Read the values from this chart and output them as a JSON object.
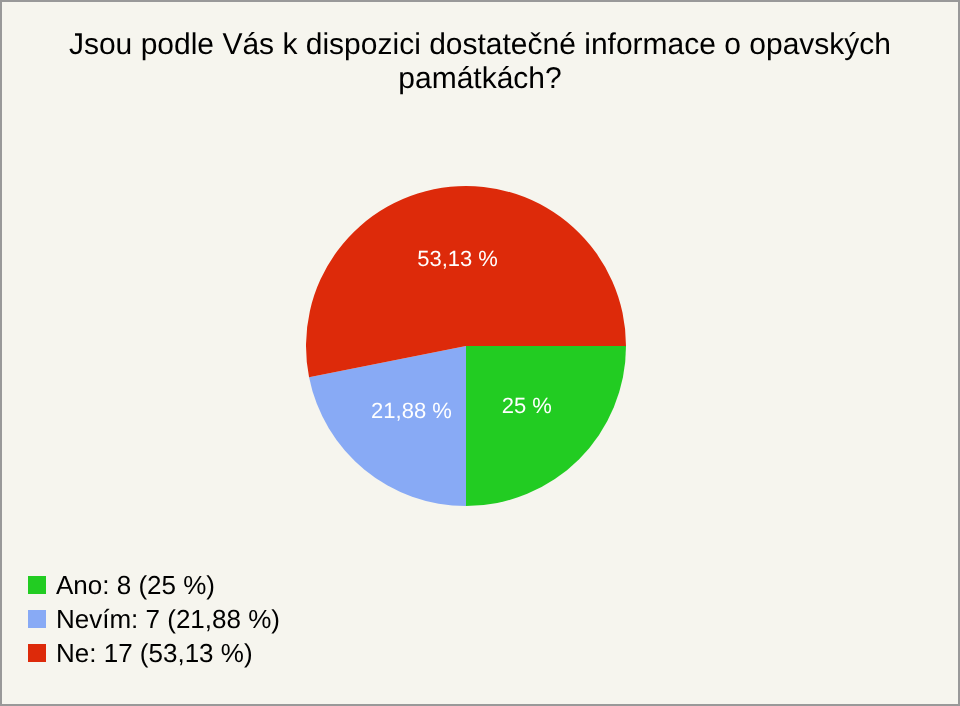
{
  "chart_data": {
    "type": "pie",
    "title": "Jsou podle Vás k dispozici dostatečné informace o opavských památkách?",
    "categories": [
      "Ano: 8 (25 %)",
      "Nevím: 7 (21,88 %)",
      "Ne: 17 (53,13 %)"
    ],
    "values": [
      25,
      21.88,
      53.13
    ],
    "colors": [
      "#22cc22",
      "#88aaf5",
      "#dd2a0a"
    ],
    "value_labels": [
      "25 %",
      "21,88 %",
      "53,13 %"
    ],
    "legend": "bottom left"
  }
}
